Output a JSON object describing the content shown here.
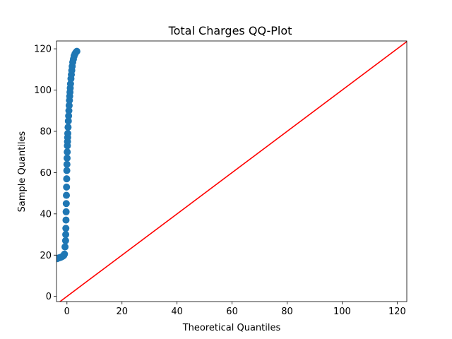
{
  "chart_data": {
    "type": "scatter",
    "title": "Total Charges QQ-Plot",
    "xlabel": "Theoretical Quantiles",
    "ylabel": "Sample Quantiles",
    "xlim": [
      -3.8,
      123.5
    ],
    "ylim": [
      -2.5,
      123.8
    ],
    "xticks": [
      0,
      20,
      40,
      60,
      80,
      100,
      120
    ],
    "yticks": [
      0,
      20,
      40,
      60,
      80,
      100,
      120
    ],
    "grid": false,
    "series": [
      {
        "kind": "points",
        "color": "#1f77b4",
        "x": [
          -3.6,
          -3.2,
          -2.8,
          -2.4,
          -2.0,
          -1.6,
          -1.2,
          -0.9,
          -0.7,
          -0.5,
          -0.45,
          -0.4,
          -0.35,
          -0.3,
          -0.25,
          -0.2,
          -0.15,
          -0.1,
          -0.05,
          0.0,
          0.05,
          0.1,
          0.15,
          0.2,
          0.25,
          0.3,
          0.4,
          0.5,
          0.6,
          0.7,
          0.8,
          0.9,
          1.0,
          1.1,
          1.2,
          1.3,
          1.45,
          1.6,
          1.75,
          1.9,
          2.1,
          2.35,
          2.6,
          2.9,
          3.2,
          3.6
        ],
        "y": [
          18.3,
          18.5,
          18.7,
          18.9,
          19.1,
          19.4,
          19.8,
          20.5,
          24.0,
          27.0,
          30.0,
          33.0,
          37.0,
          41.0,
          45.0,
          49.0,
          53.0,
          57.0,
          61.0,
          64.0,
          67.0,
          70.0,
          73.0,
          75.0,
          77.0,
          79.0,
          82.0,
          85.0,
          87.5,
          90.0,
          92.5,
          95.0,
          97.0,
          99.0,
          101.0,
          103.0,
          105.5,
          107.5,
          109.5,
          111.5,
          113.5,
          115.0,
          116.5,
          117.5,
          118.2,
          118.8
        ]
      },
      {
        "kind": "reference-line",
        "color": "#ff0000",
        "x": [
          -3.8,
          123.5
        ],
        "y": [
          -3.8,
          123.5
        ]
      }
    ]
  }
}
